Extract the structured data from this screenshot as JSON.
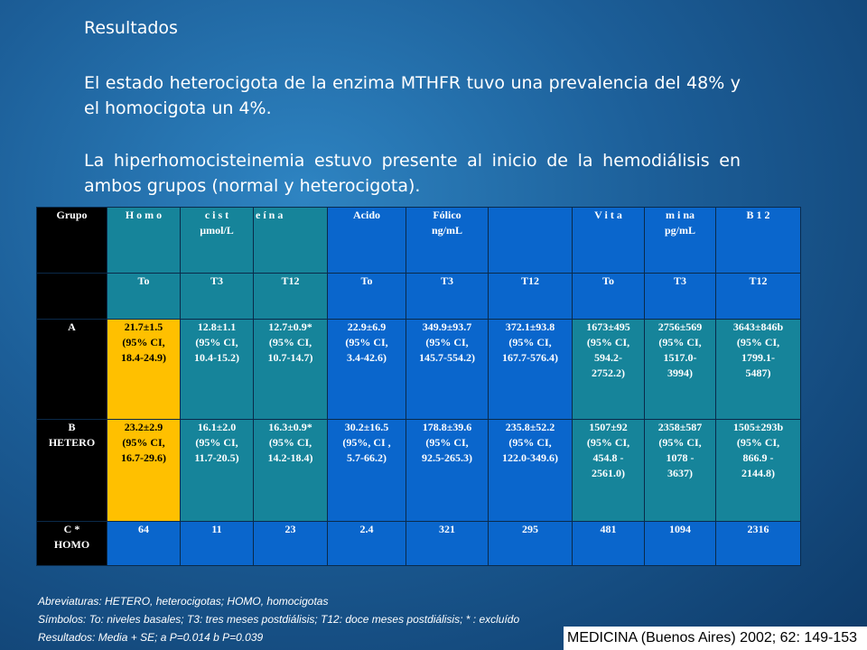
{
  "heading": "Resultados",
  "paragraph1": "El estado heterocigota de la enzima MTHFR tuvo una prevalencia del 48% y el homocigota un 4%.",
  "paragraph2": "La hiperhomocisteinemia estuvo presente al inicio de la hemodiálisis en ambos grupos (normal y heterocigota).",
  "table": {
    "header": [
      "Grupo",
      "H o m o",
      "c i s t\nµmol/L",
      "e í n a",
      "Acido",
      "Fólico\nng/mL",
      "",
      "V i t a",
      "m i na\npg/mL",
      "B 1 2"
    ],
    "subheader": [
      "",
      "To",
      "T3",
      "T12",
      "To",
      "T3",
      "T12",
      "To",
      "T3",
      "T12"
    ],
    "rows": [
      {
        "group": "A",
        "cells": [
          "21.7±1.5\n(95% CI,\n18.4-24.9)",
          "12.8±1.1\n(95% CI,\n10.4-15.2)",
          "12.7±0.9*\n(95% CI,\n10.7-14.7)",
          "22.9±6.9\n(95% CI,\n3.4-42.6)",
          "349.9±93.7\n(95% CI,\n145.7-554.2)",
          "372.1±93.8\n(95% CI,\n167.7-576.4)",
          "1673±495\n(95% CI,\n594.2-\n2752.2)",
          "2756±569\n(95% CI,\n1517.0-\n3994)",
          "3643±846b\n(95% CI,\n1799.1-\n5487)"
        ]
      },
      {
        "group": "B\nHETERO",
        "cells": [
          "23.2±2.9\n(95% CI,\n16.7-29.6)",
          "16.1±2.0\n(95% CI,\n11.7-20.5)",
          "16.3±0.9*\n(95% CI,\n14.2-18.4)",
          "30.2±16.5\n(95%, CI ,\n5.7-66.2)",
          "178.8±39.6\n(95% CI,\n92.5-265.3)",
          "235.8±52.2\n(95% CI,\n122.0-349.6)",
          "1507±92\n(95% CI,\n454.8 -\n2561.0)",
          "2358±587\n(95% CI,\n1078 -\n3637)",
          "1505±293b\n(95% CI,\n866.9 -\n2144.8)"
        ]
      },
      {
        "group": "C *\nHOMO",
        "cells": [
          "64",
          "11",
          "23",
          "2.4",
          "321",
          "295",
          "481",
          "1094",
          "2316"
        ]
      }
    ]
  },
  "notes": [
    "Abreviaturas: HETERO, heterocigotas; HOMO, homocigotas",
    "Símbolos: To: niveles basales; T3: tres meses postdiálisis; T12: doce meses postdiálisis; * : excluído",
    "Resultados: Media + SE; a P=0.014    b P=0.039"
  ],
  "citation": "MEDICINA (Buenos Aires) 2002; 62: 149-153",
  "colors": {
    "homocysteine": "#ffc000",
    "folic": "#0a66cc",
    "b12": "#16849a",
    "group": "#000000"
  }
}
